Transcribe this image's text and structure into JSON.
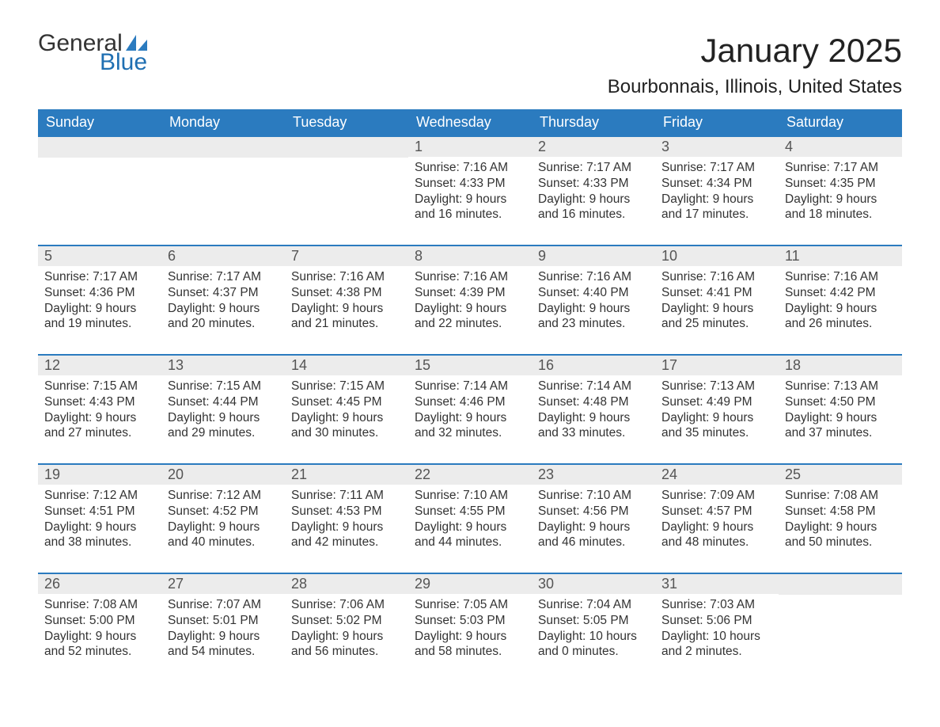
{
  "logo": {
    "general": "General",
    "blue": "Blue",
    "sail_color": "#2b7bbf"
  },
  "title": "January 2025",
  "location": "Bourbonnais, Illinois, United States",
  "colors": {
    "header_bg": "#2b7bbf",
    "header_text": "#ffffff",
    "daynum_bg": "#ececec",
    "daynum_text": "#555555",
    "body_text": "#333333",
    "week_border": "#2b7bbf",
    "page_bg": "#ffffff"
  },
  "weekdays": [
    "Sunday",
    "Monday",
    "Tuesday",
    "Wednesday",
    "Thursday",
    "Friday",
    "Saturday"
  ],
  "weeks": [
    [
      null,
      null,
      null,
      {
        "n": "1",
        "sr": "Sunrise: 7:16 AM",
        "ss": "Sunset: 4:33 PM",
        "d1": "Daylight: 9 hours",
        "d2": "and 16 minutes."
      },
      {
        "n": "2",
        "sr": "Sunrise: 7:17 AM",
        "ss": "Sunset: 4:33 PM",
        "d1": "Daylight: 9 hours",
        "d2": "and 16 minutes."
      },
      {
        "n": "3",
        "sr": "Sunrise: 7:17 AM",
        "ss": "Sunset: 4:34 PM",
        "d1": "Daylight: 9 hours",
        "d2": "and 17 minutes."
      },
      {
        "n": "4",
        "sr": "Sunrise: 7:17 AM",
        "ss": "Sunset: 4:35 PM",
        "d1": "Daylight: 9 hours",
        "d2": "and 18 minutes."
      }
    ],
    [
      {
        "n": "5",
        "sr": "Sunrise: 7:17 AM",
        "ss": "Sunset: 4:36 PM",
        "d1": "Daylight: 9 hours",
        "d2": "and 19 minutes."
      },
      {
        "n": "6",
        "sr": "Sunrise: 7:17 AM",
        "ss": "Sunset: 4:37 PM",
        "d1": "Daylight: 9 hours",
        "d2": "and 20 minutes."
      },
      {
        "n": "7",
        "sr": "Sunrise: 7:16 AM",
        "ss": "Sunset: 4:38 PM",
        "d1": "Daylight: 9 hours",
        "d2": "and 21 minutes."
      },
      {
        "n": "8",
        "sr": "Sunrise: 7:16 AM",
        "ss": "Sunset: 4:39 PM",
        "d1": "Daylight: 9 hours",
        "d2": "and 22 minutes."
      },
      {
        "n": "9",
        "sr": "Sunrise: 7:16 AM",
        "ss": "Sunset: 4:40 PM",
        "d1": "Daylight: 9 hours",
        "d2": "and 23 minutes."
      },
      {
        "n": "10",
        "sr": "Sunrise: 7:16 AM",
        "ss": "Sunset: 4:41 PM",
        "d1": "Daylight: 9 hours",
        "d2": "and 25 minutes."
      },
      {
        "n": "11",
        "sr": "Sunrise: 7:16 AM",
        "ss": "Sunset: 4:42 PM",
        "d1": "Daylight: 9 hours",
        "d2": "and 26 minutes."
      }
    ],
    [
      {
        "n": "12",
        "sr": "Sunrise: 7:15 AM",
        "ss": "Sunset: 4:43 PM",
        "d1": "Daylight: 9 hours",
        "d2": "and 27 minutes."
      },
      {
        "n": "13",
        "sr": "Sunrise: 7:15 AM",
        "ss": "Sunset: 4:44 PM",
        "d1": "Daylight: 9 hours",
        "d2": "and 29 minutes."
      },
      {
        "n": "14",
        "sr": "Sunrise: 7:15 AM",
        "ss": "Sunset: 4:45 PM",
        "d1": "Daylight: 9 hours",
        "d2": "and 30 minutes."
      },
      {
        "n": "15",
        "sr": "Sunrise: 7:14 AM",
        "ss": "Sunset: 4:46 PM",
        "d1": "Daylight: 9 hours",
        "d2": "and 32 minutes."
      },
      {
        "n": "16",
        "sr": "Sunrise: 7:14 AM",
        "ss": "Sunset: 4:48 PM",
        "d1": "Daylight: 9 hours",
        "d2": "and 33 minutes."
      },
      {
        "n": "17",
        "sr": "Sunrise: 7:13 AM",
        "ss": "Sunset: 4:49 PM",
        "d1": "Daylight: 9 hours",
        "d2": "and 35 minutes."
      },
      {
        "n": "18",
        "sr": "Sunrise: 7:13 AM",
        "ss": "Sunset: 4:50 PM",
        "d1": "Daylight: 9 hours",
        "d2": "and 37 minutes."
      }
    ],
    [
      {
        "n": "19",
        "sr": "Sunrise: 7:12 AM",
        "ss": "Sunset: 4:51 PM",
        "d1": "Daylight: 9 hours",
        "d2": "and 38 minutes."
      },
      {
        "n": "20",
        "sr": "Sunrise: 7:12 AM",
        "ss": "Sunset: 4:52 PM",
        "d1": "Daylight: 9 hours",
        "d2": "and 40 minutes."
      },
      {
        "n": "21",
        "sr": "Sunrise: 7:11 AM",
        "ss": "Sunset: 4:53 PM",
        "d1": "Daylight: 9 hours",
        "d2": "and 42 minutes."
      },
      {
        "n": "22",
        "sr": "Sunrise: 7:10 AM",
        "ss": "Sunset: 4:55 PM",
        "d1": "Daylight: 9 hours",
        "d2": "and 44 minutes."
      },
      {
        "n": "23",
        "sr": "Sunrise: 7:10 AM",
        "ss": "Sunset: 4:56 PM",
        "d1": "Daylight: 9 hours",
        "d2": "and 46 minutes."
      },
      {
        "n": "24",
        "sr": "Sunrise: 7:09 AM",
        "ss": "Sunset: 4:57 PM",
        "d1": "Daylight: 9 hours",
        "d2": "and 48 minutes."
      },
      {
        "n": "25",
        "sr": "Sunrise: 7:08 AM",
        "ss": "Sunset: 4:58 PM",
        "d1": "Daylight: 9 hours",
        "d2": "and 50 minutes."
      }
    ],
    [
      {
        "n": "26",
        "sr": "Sunrise: 7:08 AM",
        "ss": "Sunset: 5:00 PM",
        "d1": "Daylight: 9 hours",
        "d2": "and 52 minutes."
      },
      {
        "n": "27",
        "sr": "Sunrise: 7:07 AM",
        "ss": "Sunset: 5:01 PM",
        "d1": "Daylight: 9 hours",
        "d2": "and 54 minutes."
      },
      {
        "n": "28",
        "sr": "Sunrise: 7:06 AM",
        "ss": "Sunset: 5:02 PM",
        "d1": "Daylight: 9 hours",
        "d2": "and 56 minutes."
      },
      {
        "n": "29",
        "sr": "Sunrise: 7:05 AM",
        "ss": "Sunset: 5:03 PM",
        "d1": "Daylight: 9 hours",
        "d2": "and 58 minutes."
      },
      {
        "n": "30",
        "sr": "Sunrise: 7:04 AM",
        "ss": "Sunset: 5:05 PM",
        "d1": "Daylight: 10 hours",
        "d2": "and 0 minutes."
      },
      {
        "n": "31",
        "sr": "Sunrise: 7:03 AM",
        "ss": "Sunset: 5:06 PM",
        "d1": "Daylight: 10 hours",
        "d2": "and 2 minutes."
      },
      null
    ]
  ]
}
